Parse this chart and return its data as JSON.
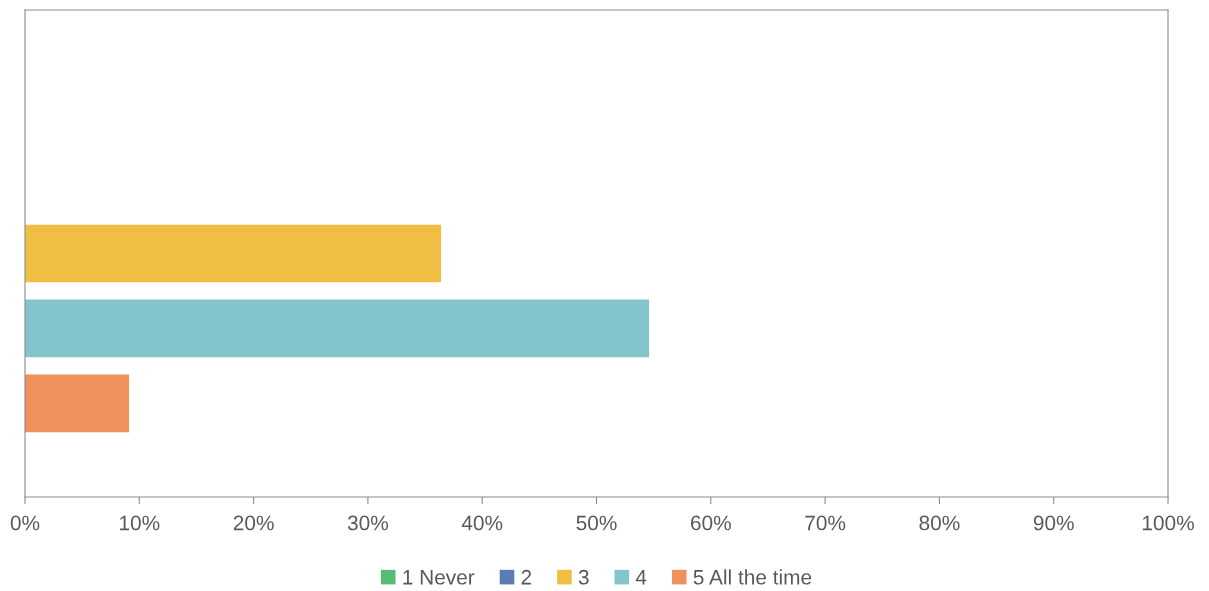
{
  "chart_data": {
    "type": "bar",
    "orientation": "horizontal",
    "categories": [
      null
    ],
    "series": [
      {
        "name": "1 Never",
        "color": "#57bb74",
        "values": [
          0
        ]
      },
      {
        "name": "2",
        "color": "#5a7db5",
        "values": [
          0
        ]
      },
      {
        "name": "3",
        "color": "#efbe42",
        "values": [
          36.4
        ]
      },
      {
        "name": "4",
        "color": "#83c5cb",
        "values": [
          54.6
        ]
      },
      {
        "name": "5 All the time",
        "color": "#f0905d",
        "values": [
          9.1
        ]
      }
    ],
    "xlim": [
      0,
      100
    ],
    "xticks": [
      {
        "value": 0,
        "label": "0%"
      },
      {
        "value": 10,
        "label": "10%"
      },
      {
        "value": 20,
        "label": "20%"
      },
      {
        "value": 30,
        "label": "30%"
      },
      {
        "value": 40,
        "label": "40%"
      },
      {
        "value": 50,
        "label": "50%"
      },
      {
        "value": 60,
        "label": "60%"
      },
      {
        "value": 70,
        "label": "70%"
      },
      {
        "value": 80,
        "label": "80%"
      },
      {
        "value": 90,
        "label": "90%"
      },
      {
        "value": 100,
        "label": "100%"
      }
    ],
    "grid": false,
    "legend": "bottom"
  }
}
